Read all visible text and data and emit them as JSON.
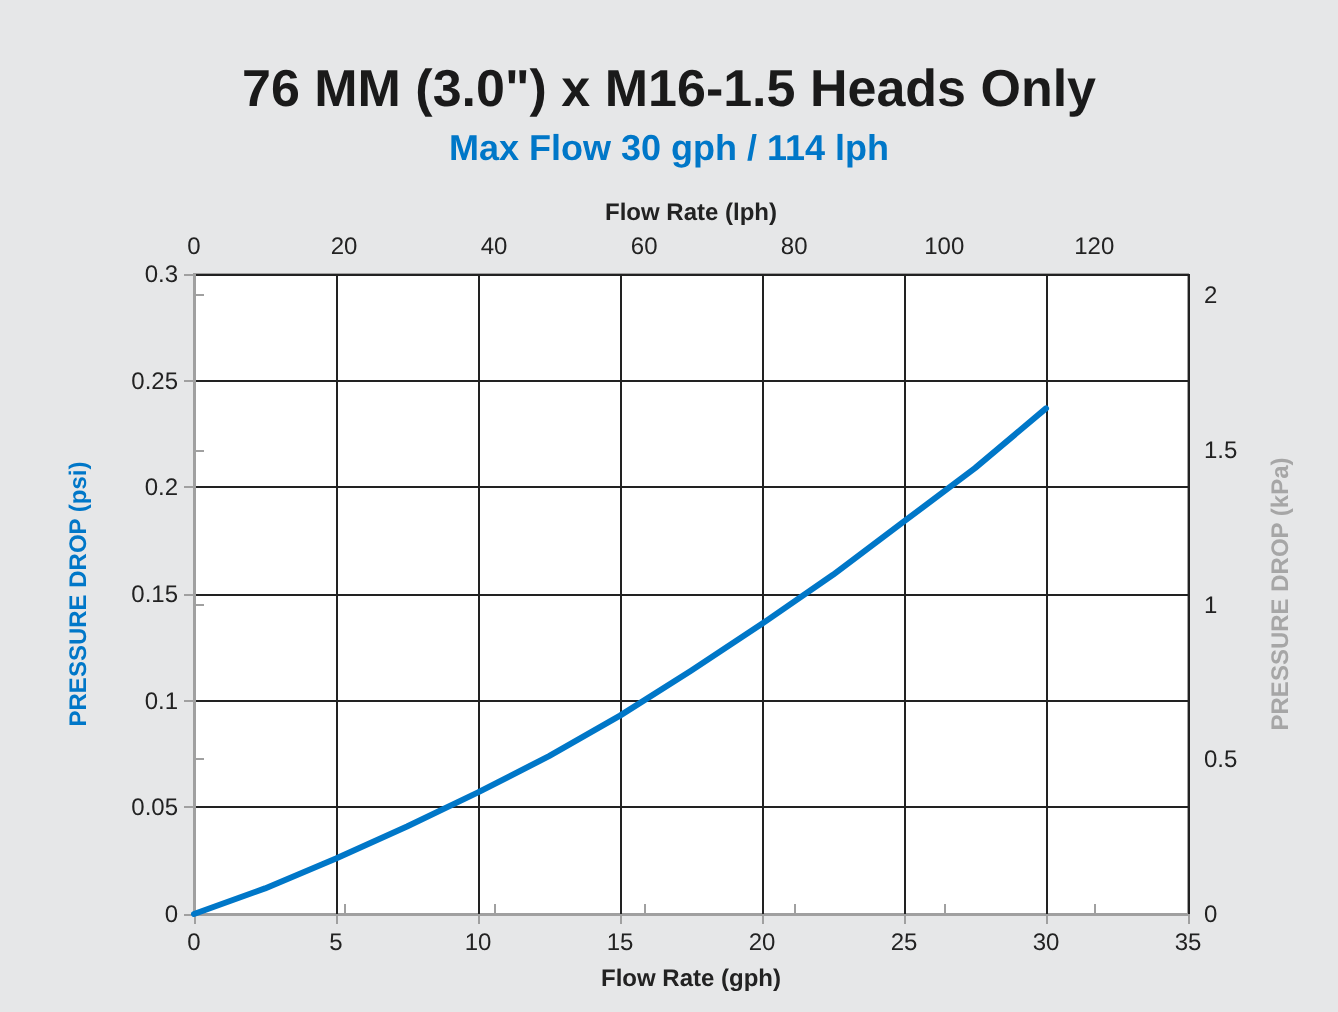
{
  "chart_data": {
    "type": "line",
    "title": "76 MM (3.0\") x M16-1.5 Heads Only",
    "subtitle": "Max Flow 30 gph / 114 lph",
    "xlabel": "Flow Rate (gph)",
    "x2label": "Flow Rate (lph)",
    "ylabel": "PRESSURE DROP (psi)",
    "y2label": "PRESSURE DROP (kPa)",
    "x": [
      0,
      2.5,
      5,
      7.5,
      10,
      12.5,
      15,
      17.5,
      20,
      22.5,
      25,
      27.5,
      30
    ],
    "series": [
      {
        "color": "#0077c8",
        "values": [
          0,
          0.012,
          0.026,
          0.041,
          0.057,
          0.074,
          0.093,
          0.114,
          0.136,
          0.159,
          0.184,
          0.209,
          0.237
        ]
      }
    ],
    "xlim": [
      0,
      35
    ],
    "xticks": [
      0,
      5,
      10,
      15,
      20,
      25,
      30,
      35
    ],
    "x2lim": [
      0,
      132.49
    ],
    "x2ticks": [
      0,
      20,
      40,
      60,
      80,
      100,
      120
    ],
    "ylim": [
      0,
      0.3
    ],
    "yticks": [
      0,
      0.05,
      0.1,
      0.15,
      0.2,
      0.25,
      0.3
    ],
    "y2lim": [
      0,
      2.068
    ],
    "y2ticks": [
      0,
      0.5,
      1,
      1.5,
      2
    ],
    "grid": true,
    "marker": "none",
    "line_style": "solid"
  }
}
